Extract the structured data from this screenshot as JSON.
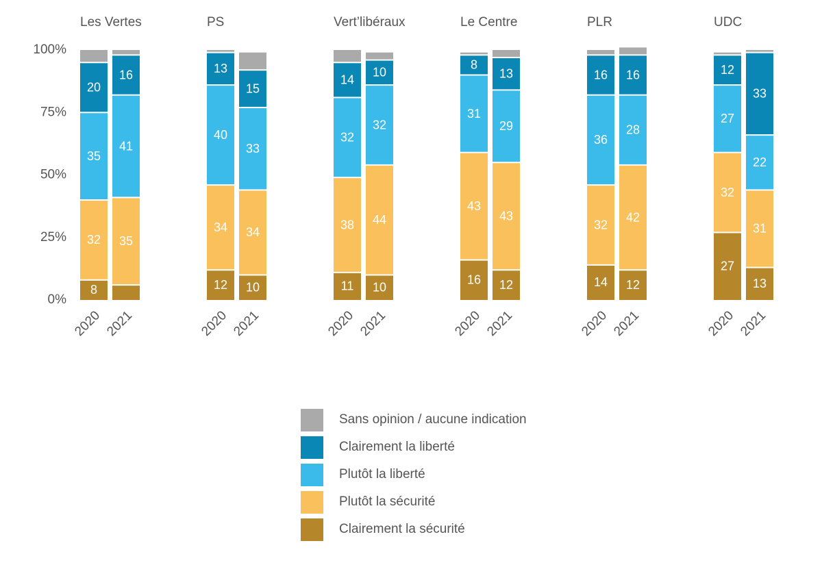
{
  "chart_data": {
    "type": "bar",
    "stacked": true,
    "ylim": [
      0,
      100
    ],
    "yticks": [
      {
        "value": 0,
        "label": "0%"
      },
      {
        "value": 25,
        "label": "25%"
      },
      {
        "value": 50,
        "label": "50%"
      },
      {
        "value": 75,
        "label": "75%"
      },
      {
        "value": 100,
        "label": "100%"
      }
    ],
    "series": [
      {
        "name": "Clairement la sécurité",
        "color": "#b5862a",
        "labels": true
      },
      {
        "name": "Plutôt la sécurité",
        "color": "#f9c05c",
        "labels": true
      },
      {
        "name": "Plutôt la liberté",
        "color": "#3bbbe9",
        "labels": true
      },
      {
        "name": "Clairement la liberté",
        "color": "#0a87b5",
        "labels": true
      },
      {
        "name": "Sans opinion / aucune indication",
        "color": "#aaaaaa",
        "labels": false
      }
    ],
    "panels": [
      {
        "title": "Les Vertes",
        "categories": [
          "2020",
          "2021"
        ],
        "values": [
          [
            8,
            6
          ],
          [
            32,
            35
          ],
          [
            35,
            41
          ],
          [
            20,
            16
          ],
          [
            5,
            2
          ]
        ]
      },
      {
        "title": "PS",
        "categories": [
          "2020",
          "2021"
        ],
        "values": [
          [
            12,
            10
          ],
          [
            34,
            34
          ],
          [
            40,
            33
          ],
          [
            13,
            15
          ],
          [
            1,
            7
          ]
        ]
      },
      {
        "title": "Vert’libéraux",
        "categories": [
          "2020",
          "2021"
        ],
        "values": [
          [
            11,
            10
          ],
          [
            38,
            44
          ],
          [
            32,
            32
          ],
          [
            14,
            10
          ],
          [
            5,
            3
          ]
        ]
      },
      {
        "title": "Le Centre",
        "categories": [
          "2020",
          "2021"
        ],
        "values": [
          [
            16,
            12
          ],
          [
            43,
            43
          ],
          [
            31,
            29
          ],
          [
            8,
            13
          ],
          [
            1,
            3
          ]
        ]
      },
      {
        "title": "PLR",
        "categories": [
          "2020",
          "2021"
        ],
        "values": [
          [
            14,
            12
          ],
          [
            32,
            42
          ],
          [
            36,
            28
          ],
          [
            16,
            16
          ],
          [
            2,
            3
          ]
        ]
      },
      {
        "title": "UDC",
        "categories": [
          "2020",
          "2021"
        ],
        "values": [
          [
            27,
            13
          ],
          [
            32,
            31
          ],
          [
            27,
            22
          ],
          [
            12,
            33
          ],
          [
            1,
            1
          ]
        ]
      }
    ]
  }
}
